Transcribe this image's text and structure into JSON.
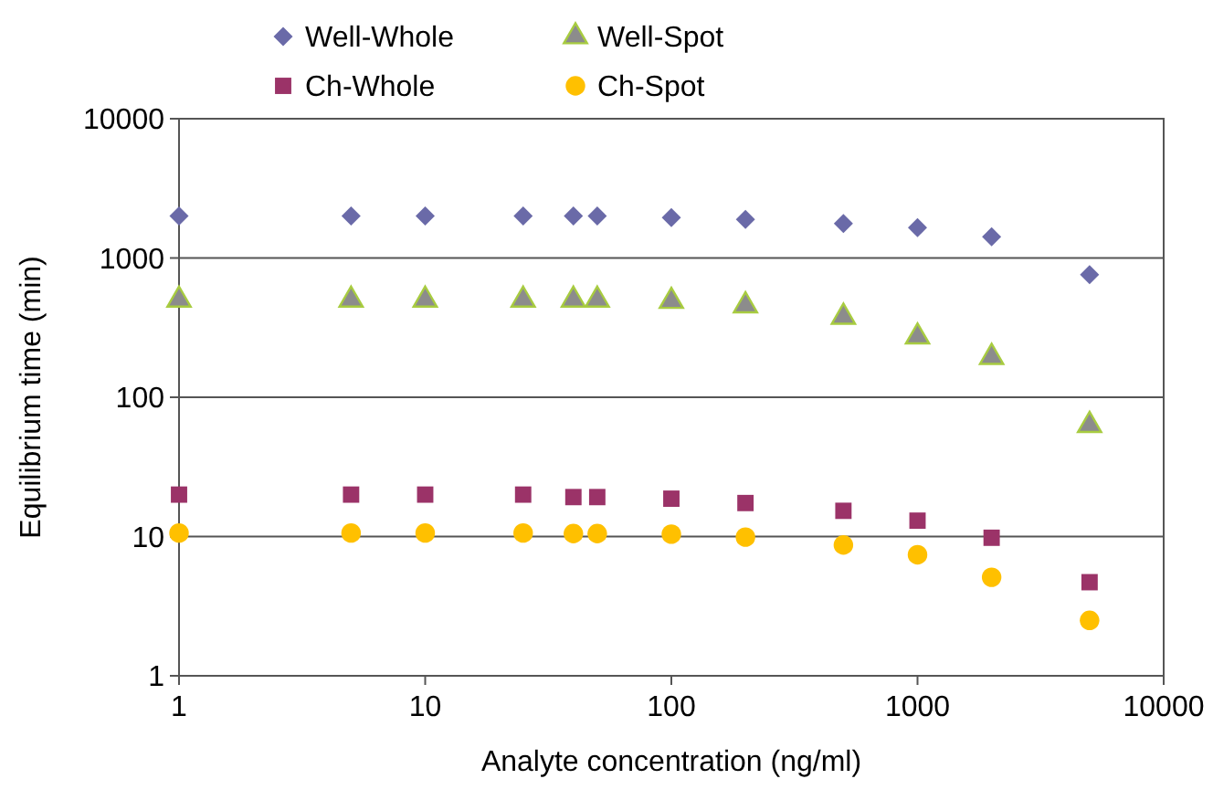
{
  "chart_data": {
    "type": "scatter",
    "xlabel": "Analyte concentration (ng/ml)",
    "ylabel": "Equilibrium time (min)",
    "x": [
      1,
      5,
      10,
      25,
      40,
      50,
      100,
      200,
      500,
      1000,
      2000,
      5000
    ],
    "series": [
      {
        "name": "Well-Whole",
        "color": "#6a6aa8",
        "marker": "diamond",
        "values": [
          2000,
          2000,
          2000,
          2000,
          2000,
          2000,
          1950,
          1890,
          1770,
          1650,
          1420,
          760
        ]
      },
      {
        "name": "Well-Spot",
        "color": "#8c8c8c",
        "marker": "triangle",
        "values": [
          500,
          500,
          500,
          500,
          500,
          500,
          490,
          455,
          377,
          272,
          194,
          63
        ]
      },
      {
        "name": "Ch-Whole",
        "color": "#9b3368",
        "marker": "square",
        "values": [
          20,
          20,
          20,
          20,
          19.2,
          19.2,
          18.7,
          17.4,
          15.3,
          13,
          9.8,
          4.7
        ]
      },
      {
        "name": "Ch-Spot",
        "color": "#ffc000",
        "marker": "circle",
        "values": [
          10.6,
          10.6,
          10.6,
          10.6,
          10.5,
          10.5,
          10.4,
          9.9,
          8.7,
          7.4,
          5.1,
          2.5
        ]
      }
    ],
    "log": "xy",
    "xlim": [
      1,
      10000
    ],
    "xticks": [
      1,
      10,
      100,
      1000,
      10000
    ],
    "ylim": [
      1,
      10000
    ],
    "yticks": [
      1,
      10,
      100,
      1000,
      10000
    ],
    "grid": "y",
    "legend": "top"
  }
}
